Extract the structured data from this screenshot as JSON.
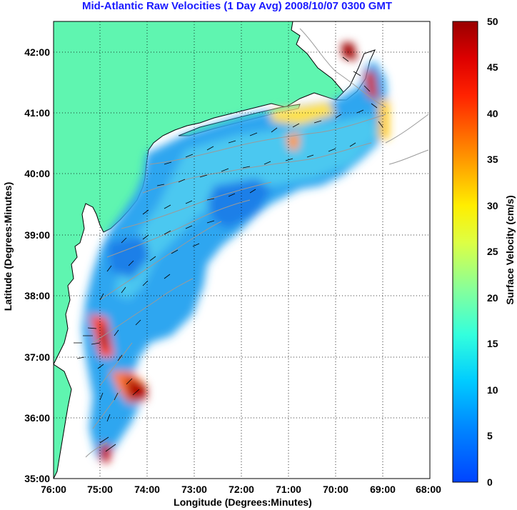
{
  "title": "Mid-Atlantic Raw Velocities (1 Day Avg) 2008/10/07 0300 GMT",
  "map": {
    "xlabel": "Longitude (Degrees:Minutes)",
    "ylabel": "Latitude (Degrees:Minutes)",
    "lon_ticks": [
      "76:00",
      "75:00",
      "74:00",
      "73:00",
      "72:00",
      "71:00",
      "70:00",
      "69:00",
      "68:00"
    ],
    "lat_ticks": [
      "42:00",
      "41:00",
      "40:00",
      "39:00",
      "38:00",
      "37:00",
      "36:00",
      "35:00"
    ],
    "lon_range": [
      -76,
      -68
    ],
    "lat_range": [
      35,
      42.5
    ],
    "land_color": "#5ff5b0",
    "coast_color": "#000000",
    "bathymetry_color": "#9a9a9a"
  },
  "colorbar": {
    "label": "Surface Velocity (cm/s)",
    "ticks": [
      "50",
      "45",
      "40",
      "35",
      "30",
      "25",
      "20",
      "15",
      "10",
      "5",
      "0"
    ],
    "range": [
      0,
      50
    ]
  }
}
